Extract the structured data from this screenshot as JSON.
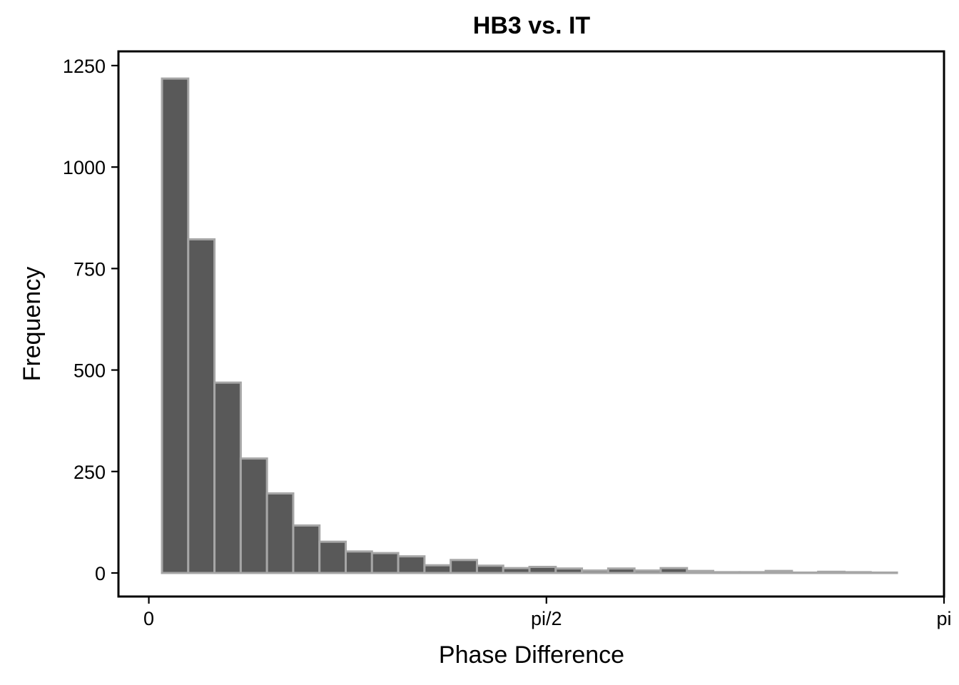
{
  "chart_data": {
    "type": "bar",
    "title": "HB3 vs. IT",
    "xlabel": "Phase Difference",
    "ylabel": "Frequency",
    "xlim": [
      -0.12,
      3.1416
    ],
    "ylim": [
      -58,
      1285
    ],
    "x_ticks": [
      {
        "value": 0,
        "label": "0"
      },
      {
        "value": 1.5708,
        "label": "pi/2"
      },
      {
        "value": 3.1416,
        "label": "pi"
      }
    ],
    "y_ticks": [
      {
        "value": 0,
        "label": "0"
      },
      {
        "value": 250,
        "label": "250"
      },
      {
        "value": 500,
        "label": "500"
      },
      {
        "value": 750,
        "label": "750"
      },
      {
        "value": 1000,
        "label": "1000"
      },
      {
        "value": 1250,
        "label": "1250"
      }
    ],
    "bin_start": 0.052,
    "bin_width": 0.1037,
    "values": [
      1218,
      822,
      469,
      282,
      196,
      117,
      77,
      53,
      49,
      41,
      19,
      32,
      18,
      12,
      15,
      11,
      6,
      11,
      6,
      12,
      5,
      2,
      2,
      5,
      1,
      3,
      2,
      1
    ],
    "grid": false,
    "legend": "none",
    "colors": {
      "bar_fill": "#595959",
      "bar_edge": "#a6a6a6"
    }
  }
}
